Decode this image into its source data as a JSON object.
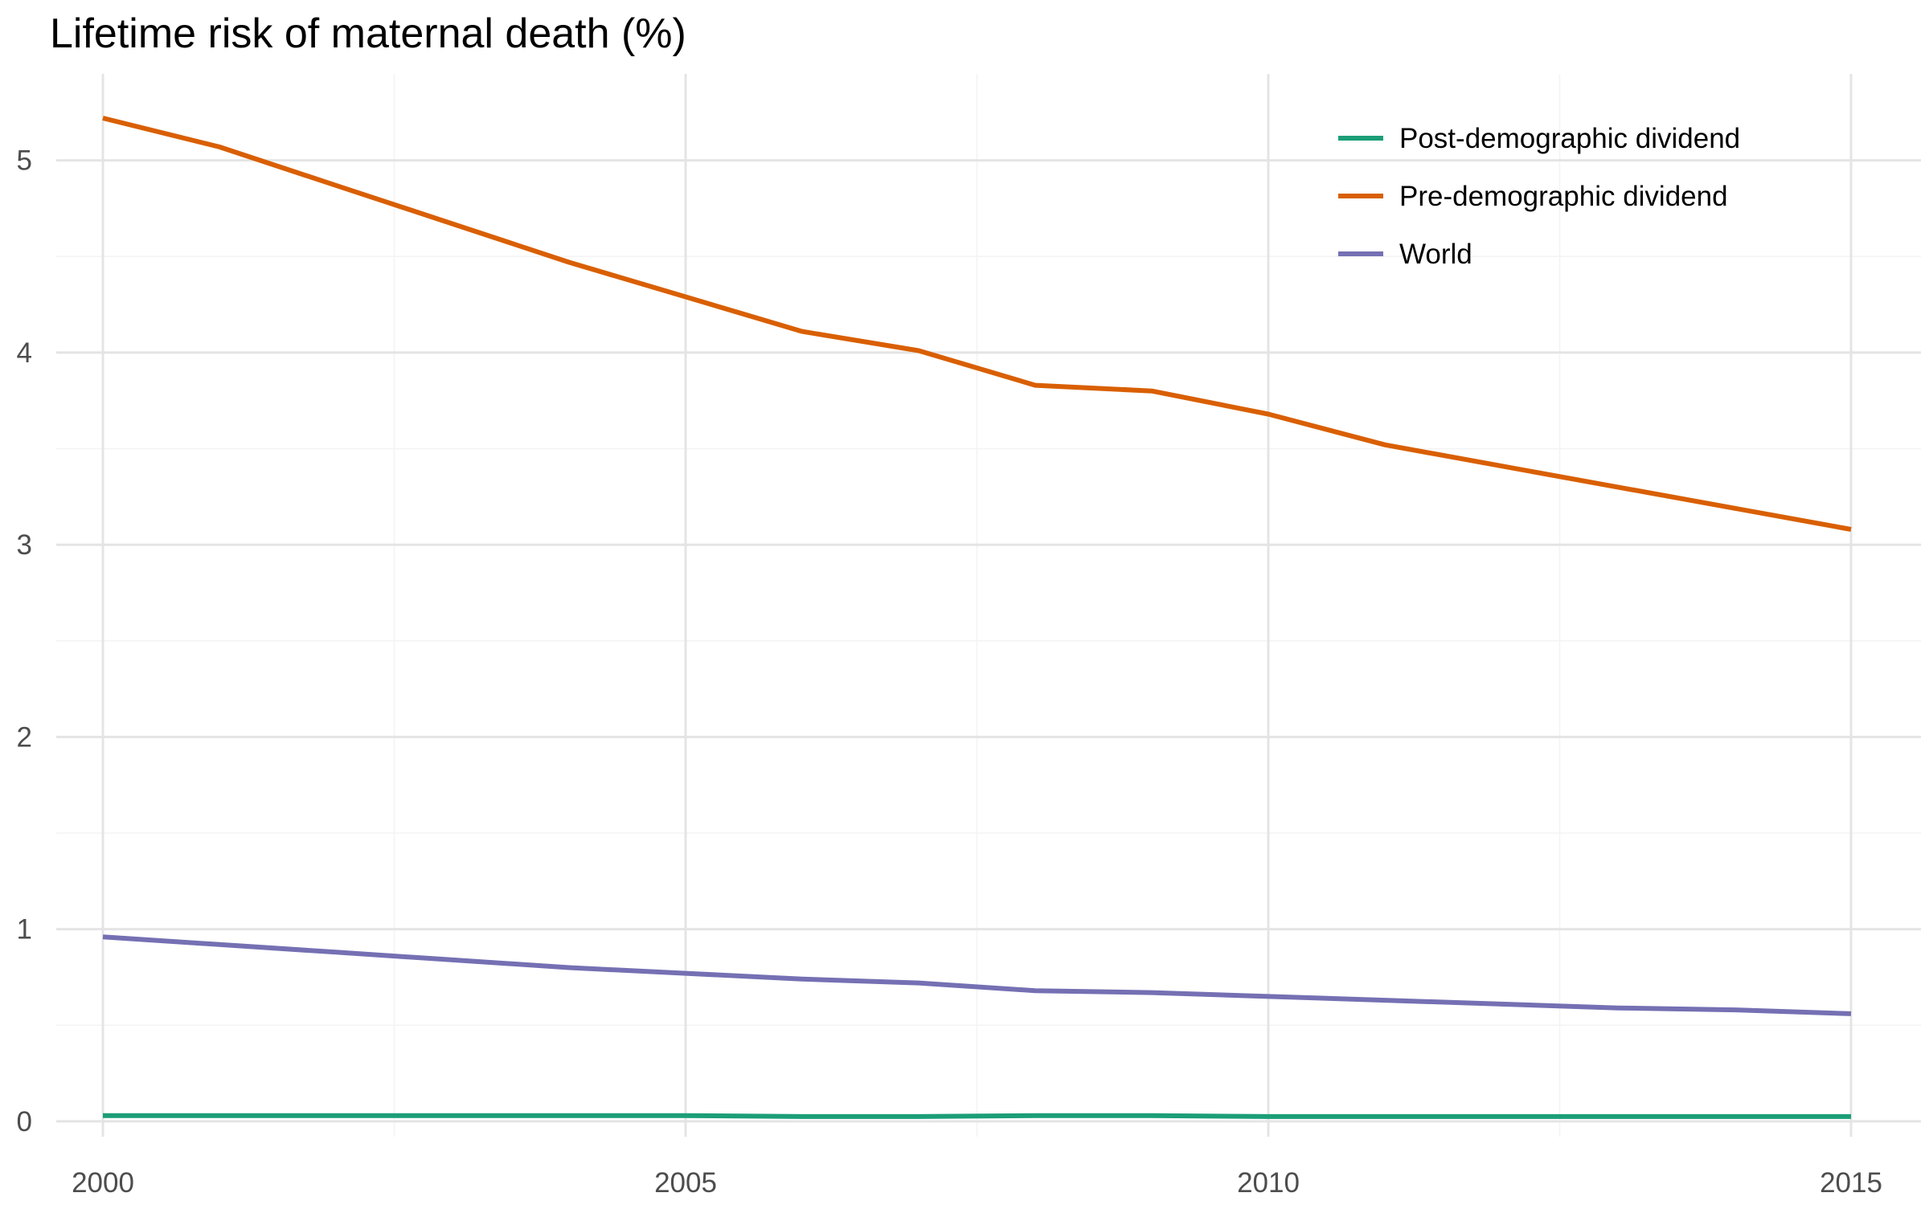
{
  "chart_data": {
    "type": "line",
    "title": "Lifetime risk of maternal death (%)",
    "xlabel": "",
    "ylabel": "",
    "xlim": [
      1999.6,
      2015.6
    ],
    "ylim": [
      -0.08,
      5.45
    ],
    "x_ticks": [
      2000,
      2005,
      2010,
      2015
    ],
    "y_ticks": [
      0,
      1,
      2,
      3,
      4,
      5
    ],
    "grid": true,
    "legend_position": "top-right",
    "x": [
      2000,
      2001,
      2002,
      2003,
      2004,
      2005,
      2006,
      2007,
      2008,
      2009,
      2010,
      2011,
      2012,
      2013,
      2014,
      2015
    ],
    "series": [
      {
        "name": "Post-demographic dividend",
        "color": "#1b9e77",
        "values": [
          0.03,
          0.03,
          0.03,
          0.03,
          0.03,
          0.03,
          0.025,
          0.025,
          0.03,
          0.03,
          0.025,
          0.025,
          0.025,
          0.025,
          0.025,
          0.025
        ]
      },
      {
        "name": "Pre-demographic dividend",
        "color": "#d95f02",
        "values": [
          5.22,
          5.07,
          4.87,
          4.67,
          4.47,
          4.29,
          4.11,
          4.01,
          3.83,
          3.8,
          3.68,
          3.52,
          3.41,
          3.3,
          3.19,
          3.08
        ]
      },
      {
        "name": "World",
        "color": "#7570b3",
        "values": [
          0.96,
          0.92,
          0.88,
          0.84,
          0.8,
          0.77,
          0.74,
          0.72,
          0.68,
          0.67,
          0.65,
          0.63,
          0.61,
          0.59,
          0.58,
          0.56
        ]
      }
    ]
  }
}
